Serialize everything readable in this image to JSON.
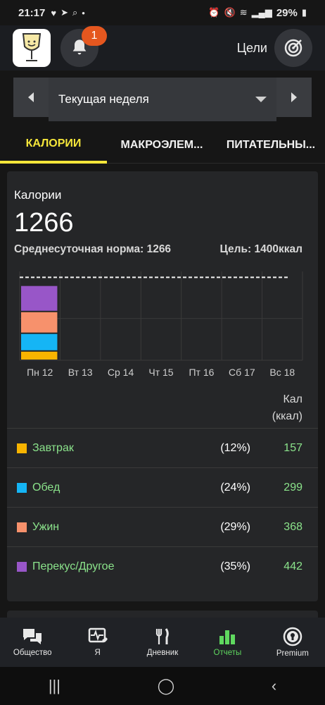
{
  "status_bar": {
    "time": "21:17",
    "battery": "29%"
  },
  "header": {
    "notification_count": "1",
    "goals_label": "Цели"
  },
  "period": {
    "selected": "Текущая неделя"
  },
  "tabs": [
    {
      "label": "КАЛОРИИ",
      "active": true
    },
    {
      "label": "МАКРОЭЛЕМ..."
    },
    {
      "label": "ПИТАТЕЛЬНЫ..."
    }
  ],
  "calories": {
    "title": "Калории",
    "total": "1266",
    "avg_label": "Среднесуточная норма: 1266",
    "goal_label": "Цель: 1400ккал",
    "unit_line1": "Кал",
    "unit_line2": "(ккал)"
  },
  "chart_data": {
    "type": "bar",
    "stacked": true,
    "categories": [
      "Пн 12",
      "Вт 13",
      "Ср 14",
      "Чт 15",
      "Пт 16",
      "Сб 17",
      "Вс 18"
    ],
    "series": [
      {
        "name": "Завтрак",
        "color": "#f8b400",
        "values": [
          157,
          0,
          0,
          0,
          0,
          0,
          0
        ]
      },
      {
        "name": "Обед",
        "color": "#15b5f5",
        "values": [
          299,
          0,
          0,
          0,
          0,
          0,
          0
        ]
      },
      {
        "name": "Ужин",
        "color": "#f7916c",
        "values": [
          368,
          0,
          0,
          0,
          0,
          0,
          0
        ]
      },
      {
        "name": "Перекус/Другое",
        "color": "#9856c8",
        "values": [
          442,
          0,
          0,
          0,
          0,
          0,
          0
        ]
      }
    ],
    "goal_line": 1400,
    "ylim": [
      0,
      1500
    ]
  },
  "meals": [
    {
      "name": "Завтрак",
      "pct": "(12%)",
      "value": "157",
      "color": "#f8b400"
    },
    {
      "name": "Обед",
      "pct": "(24%)",
      "value": "299",
      "color": "#15b5f5"
    },
    {
      "name": "Ужин",
      "pct": "(29%)",
      "value": "368",
      "color": "#f7916c"
    },
    {
      "name": "Перекус/Другое",
      "pct": "(35%)",
      "value": "442",
      "color": "#9856c8"
    }
  ],
  "bottom_nav": [
    {
      "label": "Общество",
      "icon": "community-icon"
    },
    {
      "label": "Я",
      "icon": "heart-pulse-icon"
    },
    {
      "label": "Дневник",
      "icon": "fork-knife-icon"
    },
    {
      "label": "Отчеты",
      "icon": "bar-chart-icon",
      "active": true
    },
    {
      "label": "Premium",
      "icon": "premium-icon"
    }
  ],
  "colors": {
    "accent_tab": "#f5e63a",
    "positive_green": "#8be38b",
    "nav_active": "#5fd85f",
    "badge": "#e5571f"
  }
}
